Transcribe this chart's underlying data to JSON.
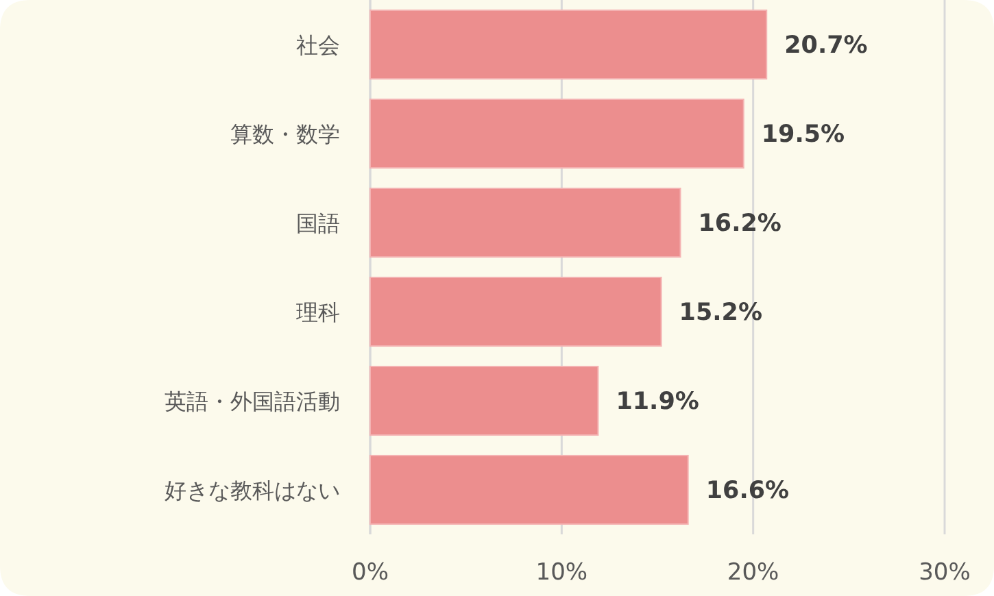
{
  "chart_data": {
    "type": "bar",
    "orientation": "horizontal",
    "categories": [
      "社会",
      "算数・数学",
      "国語",
      "理科",
      "英語・外国語活動",
      "好きな教科はない"
    ],
    "values": [
      20.7,
      19.5,
      16.2,
      15.2,
      11.9,
      16.6
    ],
    "value_labels": [
      "20.7%",
      "19.5%",
      "16.2%",
      "15.2%",
      "11.9%",
      "16.6%"
    ],
    "color": "#ec8e8e",
    "xlim": [
      0,
      30
    ],
    "xticks": [
      {
        "value": 0,
        "label": "0%"
      },
      {
        "value": 10,
        "label": "10%"
      },
      {
        "value": 20,
        "label": "20%"
      },
      {
        "value": 30,
        "label": "30%"
      }
    ],
    "grid": "x"
  }
}
